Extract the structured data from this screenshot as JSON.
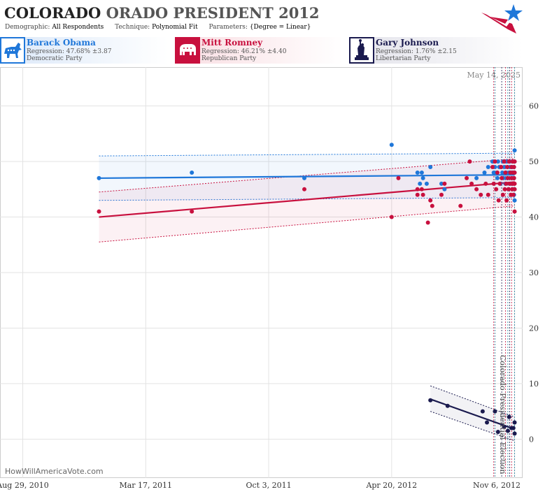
{
  "header": {
    "title_bold": "COLORADO",
    "title_rest": "ORADO PRESIDENT",
    "title_year": "2012",
    "demographic_label": "Demographic:",
    "demographic_value": "All Respondents",
    "technique_label": "Technique:",
    "technique_value": "Polynomial Fit",
    "parameters_label": "Parameters:",
    "parameters_value": "{Degree = Linear}",
    "logo_icon": "star-flag-logo-icon"
  },
  "candidates": [
    {
      "name": "Barack Obama",
      "regression": "Regression: 47.68% ±3.87",
      "party": "Democratic Party",
      "color": "#1f77d9",
      "icon": "donkey-icon"
    },
    {
      "name": "Mitt Romney",
      "regression": "Regression: 46.21% ±4.40",
      "party": "Republican Party",
      "color": "#c8103e",
      "icon": "elephant-icon"
    },
    {
      "name": "Gary Johnson",
      "regression": "Regression: 1.76% ±2.15",
      "party": "Libertarian Party",
      "color": "#1a1a4e",
      "icon": "statue-of-liberty-icon"
    }
  ],
  "date_stamp": "May 14, 2025",
  "event_label": "Colorado Presidential Election",
  "footer": "HowWillAmericaVote.com",
  "chart_data": {
    "type": "scatter",
    "title": "",
    "xlabel": "",
    "ylabel": "",
    "x_ticks": [
      "Aug 29, 2010",
      "Mar 17, 2011",
      "Oct 3, 2011",
      "Apr 20, 2012",
      "Nov 6, 2012"
    ],
    "xlim": [
      "2010-07-23",
      "2012-11-19"
    ],
    "ylim": [
      -7,
      67
    ],
    "y_ticks": [
      0,
      10,
      20,
      30,
      40,
      50,
      60
    ],
    "grid": true,
    "legend": "top",
    "vertical_lines": [
      "2012-10-03",
      "2012-10-05",
      "2012-10-16",
      "2012-10-22",
      "2012-10-26",
      "2012-10-29",
      "2012-11-01",
      "2012-11-06"
    ],
    "series": [
      {
        "name": "Barack Obama",
        "color": "#1f77d9",
        "trend": {
          "start": [
            "2010-12-31",
            47.0
          ],
          "end": [
            "2012-11-06",
            47.6
          ]
        },
        "band": {
          "upper": [
            51.0,
            51.5
          ],
          "lower": [
            43.0,
            43.5
          ]
        },
        "points": [
          [
            "2010-12-31",
            47
          ],
          [
            "2011-05-31",
            48
          ],
          [
            "2011-11-30",
            47
          ],
          [
            "2012-04-20",
            53
          ],
          [
            "2012-06-01",
            48
          ],
          [
            "2012-06-05",
            46
          ],
          [
            "2012-06-08",
            48
          ],
          [
            "2012-06-10",
            47
          ],
          [
            "2012-06-16",
            46
          ],
          [
            "2012-06-22",
            49
          ],
          [
            "2012-07-10",
            46
          ],
          [
            "2012-07-15",
            45
          ],
          [
            "2012-09-05",
            47
          ],
          [
            "2012-09-18",
            48
          ],
          [
            "2012-09-24",
            49
          ],
          [
            "2012-10-01",
            50
          ],
          [
            "2012-10-03",
            48
          ],
          [
            "2012-10-05",
            49
          ],
          [
            "2012-10-08",
            48
          ],
          [
            "2012-10-09",
            47
          ],
          [
            "2012-10-10",
            50
          ],
          [
            "2012-10-12",
            49
          ],
          [
            "2012-10-14",
            46
          ],
          [
            "2012-10-15",
            49
          ],
          [
            "2012-10-17",
            48
          ],
          [
            "2012-10-18",
            50
          ],
          [
            "2012-10-19",
            47
          ],
          [
            "2012-10-20",
            49
          ],
          [
            "2012-10-22",
            46
          ],
          [
            "2012-10-23",
            48
          ],
          [
            "2012-10-24",
            50
          ],
          [
            "2012-10-25",
            47
          ],
          [
            "2012-10-26",
            49
          ],
          [
            "2012-10-27",
            45
          ],
          [
            "2012-10-28",
            48
          ],
          [
            "2012-10-29",
            50
          ],
          [
            "2012-10-30",
            46
          ],
          [
            "2012-10-31",
            49
          ],
          [
            "2012-11-01",
            47
          ],
          [
            "2012-11-01",
            48
          ],
          [
            "2012-11-02",
            49
          ],
          [
            "2012-11-02",
            46
          ],
          [
            "2012-11-03",
            50
          ],
          [
            "2012-11-03",
            45
          ],
          [
            "2012-11-04",
            48
          ],
          [
            "2012-11-04",
            47
          ],
          [
            "2012-11-05",
            49
          ],
          [
            "2012-11-05",
            44
          ],
          [
            "2012-11-05",
            47
          ],
          [
            "2012-11-06",
            52
          ],
          [
            "2012-11-06",
            48
          ],
          [
            "2012-11-06",
            45
          ],
          [
            "2012-11-06",
            43
          ],
          [
            "2012-11-06",
            50
          ]
        ]
      },
      {
        "name": "Mitt Romney",
        "color": "#c8103e",
        "trend": {
          "start": [
            "2010-12-31",
            40.0
          ],
          "end": [
            "2012-11-06",
            46.3
          ]
        },
        "band": {
          "upper": [
            44.5,
            50.5
          ],
          "lower": [
            35.5,
            42.0
          ]
        },
        "points": [
          [
            "2010-12-31",
            41
          ],
          [
            "2011-05-31",
            41
          ],
          [
            "2011-11-30",
            45
          ],
          [
            "2012-04-20",
            40
          ],
          [
            "2012-05-01",
            47
          ],
          [
            "2012-06-01",
            45
          ],
          [
            "2012-06-01",
            44
          ],
          [
            "2012-06-08",
            45
          ],
          [
            "2012-06-10",
            44
          ],
          [
            "2012-06-18",
            39
          ],
          [
            "2012-06-22",
            43
          ],
          [
            "2012-06-25",
            42
          ],
          [
            "2012-07-10",
            44
          ],
          [
            "2012-07-15",
            46
          ],
          [
            "2012-08-10",
            42
          ],
          [
            "2012-08-20",
            47
          ],
          [
            "2012-08-25",
            50
          ],
          [
            "2012-08-28",
            46
          ],
          [
            "2012-09-05",
            45
          ],
          [
            "2012-09-12",
            44
          ],
          [
            "2012-09-20",
            46
          ],
          [
            "2012-09-24",
            44
          ],
          [
            "2012-10-01",
            49
          ],
          [
            "2012-10-03",
            46
          ],
          [
            "2012-10-05",
            50
          ],
          [
            "2012-10-07",
            45
          ],
          [
            "2012-10-09",
            48
          ],
          [
            "2012-10-11",
            43
          ],
          [
            "2012-10-13",
            46
          ],
          [
            "2012-10-15",
            49
          ],
          [
            "2012-10-16",
            47
          ],
          [
            "2012-10-18",
            44
          ],
          [
            "2012-10-20",
            50
          ],
          [
            "2012-10-21",
            45
          ],
          [
            "2012-10-22",
            48
          ],
          [
            "2012-10-23",
            46
          ],
          [
            "2012-10-24",
            43
          ],
          [
            "2012-10-25",
            49
          ],
          [
            "2012-10-26",
            47
          ],
          [
            "2012-10-27",
            45
          ],
          [
            "2012-10-28",
            50
          ],
          [
            "2012-10-29",
            46
          ],
          [
            "2012-10-30",
            48
          ],
          [
            "2012-10-31",
            44
          ],
          [
            "2012-11-01",
            47
          ],
          [
            "2012-11-01",
            49
          ],
          [
            "2012-11-02",
            45
          ],
          [
            "2012-11-02",
            46
          ],
          [
            "2012-11-03",
            48
          ],
          [
            "2012-11-03",
            50
          ],
          [
            "2012-11-04",
            46
          ],
          [
            "2012-11-04",
            44
          ],
          [
            "2012-11-05",
            47
          ],
          [
            "2012-11-05",
            49
          ],
          [
            "2012-11-06",
            45
          ],
          [
            "2012-11-06",
            41
          ],
          [
            "2012-11-06",
            46
          ],
          [
            "2012-11-06",
            48
          ],
          [
            "2012-11-06",
            50
          ]
        ]
      },
      {
        "name": "Gary Johnson",
        "color": "#1a1a4e",
        "trend": {
          "start": [
            "2012-06-22",
            7.2
          ],
          "end": [
            "2012-11-06",
            1.8
          ]
        },
        "band": {
          "upper": [
            9.6,
            4.0
          ],
          "lower": [
            5.0,
            -0.3
          ]
        },
        "points": [
          [
            "2012-06-22",
            7
          ],
          [
            "2012-07-20",
            6
          ],
          [
            "2012-09-15",
            5
          ],
          [
            "2012-09-22",
            3
          ],
          [
            "2012-10-05",
            5
          ],
          [
            "2012-10-10",
            1.3
          ],
          [
            "2012-10-20",
            2.2
          ],
          [
            "2012-10-26",
            1.5
          ],
          [
            "2012-10-28",
            4
          ],
          [
            "2012-11-01",
            2
          ],
          [
            "2012-11-04",
            2
          ],
          [
            "2012-11-06",
            3
          ],
          [
            "2012-11-06",
            1
          ]
        ]
      }
    ]
  }
}
